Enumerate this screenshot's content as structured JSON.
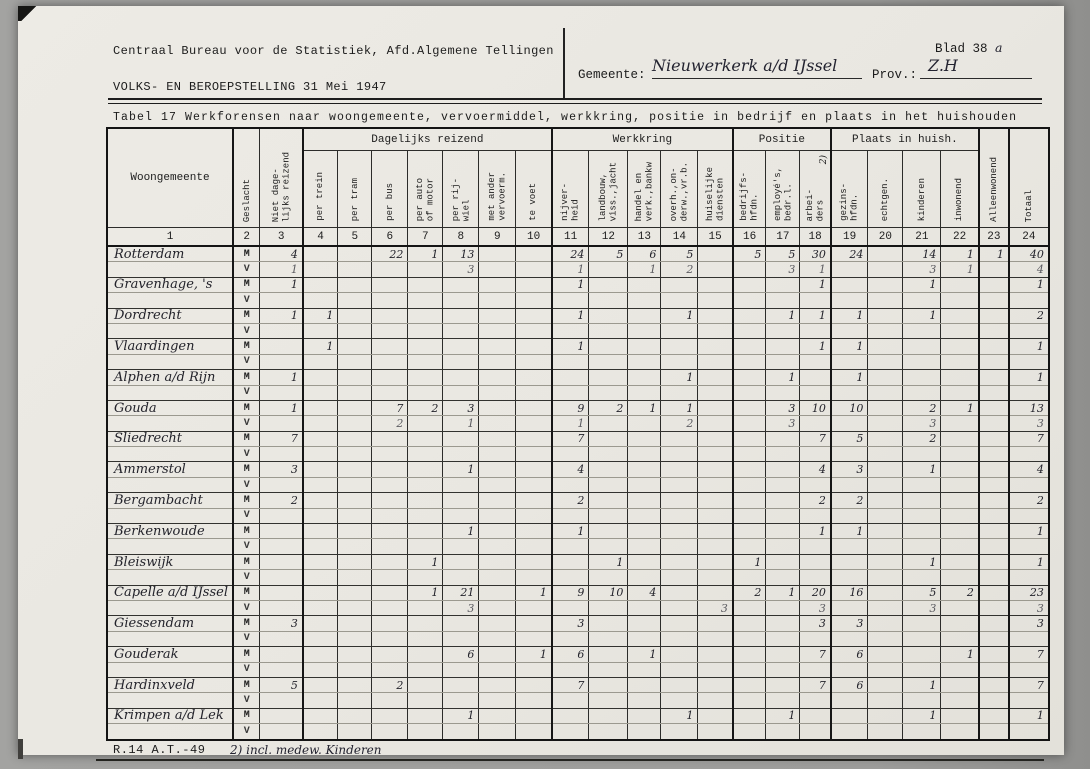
{
  "page": {
    "org_line": "Centraal Bureau voor de Statistiek, Afd.Algemene Tellingen",
    "census_line": "VOLKS- EN BEROEPSTELLING 31 Mei 1947",
    "blad_label": "Blad 38",
    "blad_suffix": "a",
    "gemeente_label": "Gemeente:",
    "gemeente_value": "Nieuwerkerk a/d IJssel",
    "prov_label": "Prov.:",
    "prov_value": "Z.H",
    "table_title": "Tabel 17 Werkforensen naar woongemeente, vervoermiddel, werkkring, positie in bedrijf en plaats in het huishouden",
    "footer_code": "R.14 A.T.-49",
    "footnote": "2) incl. medew. Kinderen"
  },
  "table": {
    "groups": [
      {
        "label": "Dagelijks reizend",
        "start": 4,
        "end": 10
      },
      {
        "label": "Werkkring",
        "start": 11,
        "end": 15
      },
      {
        "label": "Positie",
        "start": 16,
        "end": 18
      },
      {
        "label": "Plaats in huish.",
        "start": 19,
        "end": 22
      }
    ],
    "columns": [
      {
        "num": "1",
        "label": "Woongemeente",
        "orient": "h"
      },
      {
        "num": "2",
        "label": "Geslacht",
        "orient": "v"
      },
      {
        "num": "3",
        "label": "Niet dage-\nlijks reizend",
        "orient": "v"
      },
      {
        "num": "4",
        "label": "per trein",
        "orient": "v"
      },
      {
        "num": "5",
        "label": "per tram",
        "orient": "v"
      },
      {
        "num": "6",
        "label": "per bus",
        "orient": "v"
      },
      {
        "num": "7",
        "label": "per auto\nof motor",
        "orient": "v"
      },
      {
        "num": "8",
        "label": "per rij-\nwiel",
        "orient": "v"
      },
      {
        "num": "9",
        "label": "met ander\nvervoerm.",
        "orient": "v"
      },
      {
        "num": "10",
        "label": "te voet",
        "orient": "v"
      },
      {
        "num": "11",
        "label": "nijver-\nheid",
        "orient": "v"
      },
      {
        "num": "12",
        "label": "landbouw,\nviss.,jacht",
        "orient": "v"
      },
      {
        "num": "13",
        "label": "handel en\nverk.,bankw",
        "orient": "v"
      },
      {
        "num": "14",
        "label": "overh.,on-\nderw.,vr.b.",
        "orient": "v"
      },
      {
        "num": "15",
        "label": "huiselijke\ndiensten",
        "orient": "v"
      },
      {
        "num": "16",
        "label": "bedrijfs-\nhfdn.",
        "orient": "v"
      },
      {
        "num": "17",
        "label": "employé's,\nbedr.l.",
        "orient": "v"
      },
      {
        "num": "18",
        "label": "arbei-\nders",
        "orient": "v",
        "footnote": "2)"
      },
      {
        "num": "19",
        "label": "gezins-\nhfdn.",
        "orient": "v"
      },
      {
        "num": "20",
        "label": "echtgen.",
        "orient": "v"
      },
      {
        "num": "21",
        "label": "kinderen",
        "orient": "v"
      },
      {
        "num": "22",
        "label": "inwonend",
        "orient": "v"
      },
      {
        "num": "23",
        "label": "Alleenwonend",
        "orient": "v"
      },
      {
        "num": "24",
        "label": "Totaal",
        "orient": "v"
      }
    ],
    "sex_labels": {
      "male": "M",
      "female": "V"
    },
    "rows": [
      {
        "name": "Rotterdam",
        "m": {
          "c3": "4",
          "c6": "22",
          "c7": "1",
          "c8": "13",
          "c11": "24",
          "c12": "5",
          "c13": "6",
          "c14": "5",
          "c16": "5",
          "c17": "5",
          "c18": "30",
          "c19": "24",
          "c21": "14",
          "c22": "1",
          "c23": "1",
          "c24": "40"
        },
        "v": {
          "c3": "1",
          "c8": "3",
          "c11": "1",
          "c13": "1",
          "c14": "2",
          "c17": "3",
          "c18": "1",
          "c21": "3",
          "c22": "1",
          "c24": "4"
        }
      },
      {
        "name": "Gravenhage, 's",
        "m": {
          "c3": "1",
          "c11": "1",
          "c18": "1",
          "c21": "1",
          "c24": "1"
        },
        "v": {}
      },
      {
        "name": "Dordrecht",
        "m": {
          "c3": "1",
          "c4": "1",
          "c11": "1",
          "c14": "1",
          "c17": "1",
          "c18": "1",
          "c19": "1",
          "c21": "1",
          "c24": "2"
        },
        "v": {}
      },
      {
        "name": "Vlaardingen",
        "m": {
          "c4": "1",
          "c11": "1",
          "c18": "1",
          "c19": "1",
          "c24": "1"
        },
        "v": {}
      },
      {
        "name": "Alphen a/d Rijn",
        "m": {
          "c3": "1",
          "c14": "1",
          "c17": "1",
          "c19": "1",
          "c24": "1"
        },
        "v": {}
      },
      {
        "name": "Gouda",
        "m": {
          "c3": "1",
          "c6": "7",
          "c7": "2",
          "c8": "3",
          "c11": "9",
          "c12": "2",
          "c13": "1",
          "c14": "1",
          "c17": "3",
          "c18": "10",
          "c19": "10",
          "c21": "2",
          "c22": "1",
          "c24": "13"
        },
        "v": {
          "c6": "2",
          "c8": "1",
          "c11": "1",
          "c14": "2",
          "c17": "3",
          "c21": "3",
          "c24": "3"
        }
      },
      {
        "name": "Sliedrecht",
        "m": {
          "c3": "7",
          "c11": "7",
          "c18": "7",
          "c19": "5",
          "c21": "2",
          "c24": "7"
        },
        "v": {}
      },
      {
        "name": "Ammerstol",
        "m": {
          "c3": "3",
          "c8": "1",
          "c11": "4",
          "c18": "4",
          "c19": "3",
          "c21": "1",
          "c24": "4"
        },
        "v": {}
      },
      {
        "name": "Bergambacht",
        "m": {
          "c3": "2",
          "c11": "2",
          "c18": "2",
          "c19": "2",
          "c24": "2"
        },
        "v": {}
      },
      {
        "name": "Berkenwoude",
        "m": {
          "c8": "1",
          "c11": "1",
          "c18": "1",
          "c19": "1",
          "c24": "1"
        },
        "v": {}
      },
      {
        "name": "Bleiswijk",
        "m": {
          "c7": "1",
          "c12": "1",
          "c16": "1",
          "c21": "1",
          "c24": "1"
        },
        "v": {}
      },
      {
        "name": "Capelle a/d IJssel",
        "m": {
          "c7": "1",
          "c8": "21",
          "c10": "1",
          "c11": "9",
          "c12": "10",
          "c13": "4",
          "c16": "2",
          "c17": "1",
          "c18": "20",
          "c19": "16",
          "c21": "5",
          "c22": "2",
          "c24": "23"
        },
        "v": {
          "c8": "3",
          "c15": "3",
          "c18": "3",
          "c21": "3",
          "c24": "3"
        }
      },
      {
        "name": "Giessendam",
        "m": {
          "c3": "3",
          "c11": "3",
          "c18": "3",
          "c19": "3",
          "c24": "3"
        },
        "v": {}
      },
      {
        "name": "Gouderak",
        "m": {
          "c8": "6",
          "c10": "1",
          "c11": "6",
          "c13": "1",
          "c18": "7",
          "c19": "6",
          "c22": "1",
          "c24": "7"
        },
        "v": {}
      },
      {
        "name": "Hardinxveld",
        "m": {
          "c3": "5",
          "c6": "2",
          "c11": "7",
          "c18": "7",
          "c19": "6",
          "c21": "1",
          "c24": "7"
        },
        "v": {}
      },
      {
        "name": "Krimpen a/d Lek",
        "m": {
          "c8": "1",
          "c14": "1",
          "c17": "1",
          "c21": "1",
          "c24": "1"
        },
        "v": {}
      }
    ]
  }
}
